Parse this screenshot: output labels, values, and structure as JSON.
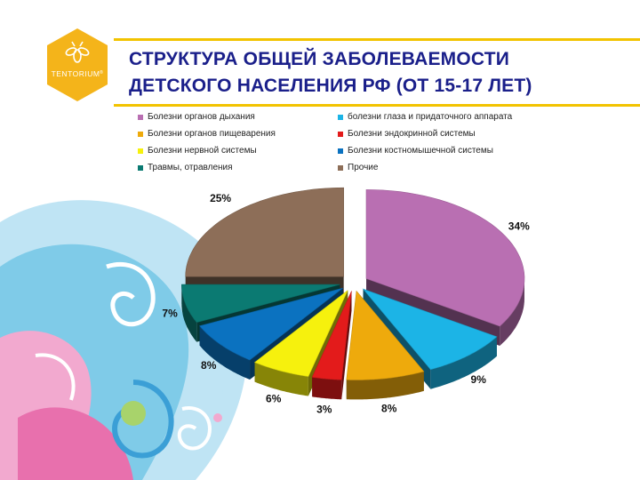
{
  "slide": {
    "title_line1": "СТРУКТУРА ОБЩЕЙ ЗАБОЛЕВАЕМОСТИ",
    "title_line2": "ДЕТСКОГО НАСЕЛЕНИЯ РФ (ОТ 15-17 ЛЕТ)",
    "logo_text": "TENTORIUM",
    "logo_mark": "®",
    "accent_color": "#f2c300",
    "title_color": "#1a1f8a"
  },
  "chart_data": {
    "type": "pie",
    "legend_position": "top",
    "series": [
      {
        "name": "Болезни органов дыхания",
        "value": 34,
        "label": "34%",
        "color": "#b96fb2"
      },
      {
        "name": "болезни глаза и придаточного аппарата",
        "value": 9,
        "label": "9%",
        "color": "#1cb4e6"
      },
      {
        "name": "Болезни органов пищеварения",
        "value": 8,
        "label": "8%",
        "color": "#eeaa0c"
      },
      {
        "name": "Болезни эндокринной системы",
        "value": 3,
        "label": "3%",
        "color": "#e31b1b"
      },
      {
        "name": "Болезни нервной системы",
        "value": 6,
        "label": "6%",
        "color": "#f6f10d"
      },
      {
        "name": "Болезни костномышечной системы",
        "value": 8,
        "label": "8%",
        "color": "#0b72c0"
      },
      {
        "name": "Травмы, отравления",
        "value": 7,
        "label": "7%",
        "color": "#0b7a72"
      },
      {
        "name": "Прочие",
        "value": 25,
        "label": "25%",
        "color": "#8d6e58"
      }
    ]
  }
}
